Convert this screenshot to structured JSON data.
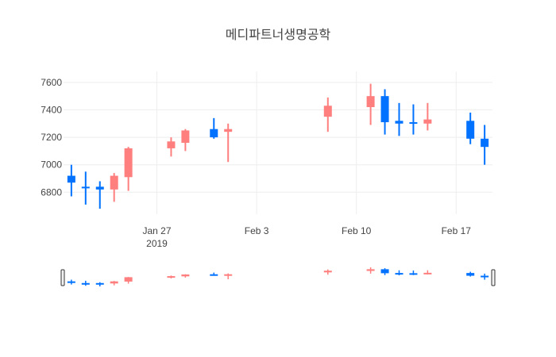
{
  "chart_data": {
    "type": "candlestick",
    "title": "메디파트너생명공학",
    "x_date_start": "2019-01-21",
    "x_date_end": "2019-02-19",
    "xlim": [
      "2019-01-21",
      "2019-02-19"
    ],
    "ylim": [
      6640,
      7680
    ],
    "y_ticks": [
      6800,
      7000,
      7200,
      7400,
      7600
    ],
    "y_tick_labels": [
      "6800",
      "7000",
      "7200",
      "7400",
      "7600"
    ],
    "x_ticks": [
      {
        "date": "2019-01-27",
        "label": "Jan 27",
        "sublabel": "2019"
      },
      {
        "date": "2019-02-03",
        "label": "Feb 3",
        "sublabel": ""
      },
      {
        "date": "2019-02-10",
        "label": "Feb 10",
        "sublabel": ""
      },
      {
        "date": "2019-02-17",
        "label": "Feb 17",
        "sublabel": ""
      }
    ],
    "increasing_color": "#FF7F7F",
    "decreasing_color": "#0072FF",
    "grid": true,
    "rangeslider": true,
    "candles": [
      {
        "date": "2019-01-21",
        "open": 6920,
        "high": 7000,
        "low": 6770,
        "close": 6870
      },
      {
        "date": "2019-01-22",
        "open": 6840,
        "high": 6950,
        "low": 6710,
        "close": 6830
      },
      {
        "date": "2019-01-23",
        "open": 6840,
        "high": 6880,
        "low": 6680,
        "close": 6820
      },
      {
        "date": "2019-01-24",
        "open": 6820,
        "high": 6940,
        "low": 6730,
        "close": 6920
      },
      {
        "date": "2019-01-25",
        "open": 6910,
        "high": 7130,
        "low": 6810,
        "close": 7120
      },
      {
        "date": "2019-01-28",
        "open": 7120,
        "high": 7200,
        "low": 7060,
        "close": 7170
      },
      {
        "date": "2019-01-29",
        "open": 7160,
        "high": 7260,
        "low": 7100,
        "close": 7250
      },
      {
        "date": "2019-01-31",
        "open": 7260,
        "high": 7340,
        "low": 7190,
        "close": 7200
      },
      {
        "date": "2019-02-01",
        "open": 7240,
        "high": 7300,
        "low": 7020,
        "close": 7260
      },
      {
        "date": "2019-02-08",
        "open": 7350,
        "high": 7490,
        "low": 7240,
        "close": 7430
      },
      {
        "date": "2019-02-11",
        "open": 7420,
        "high": 7590,
        "low": 7290,
        "close": 7500
      },
      {
        "date": "2019-02-12",
        "open": 7500,
        "high": 7550,
        "low": 7220,
        "close": 7310
      },
      {
        "date": "2019-02-13",
        "open": 7320,
        "high": 7450,
        "low": 7210,
        "close": 7300
      },
      {
        "date": "2019-02-14",
        "open": 7310,
        "high": 7440,
        "low": 7220,
        "close": 7300
      },
      {
        "date": "2019-02-15",
        "open": 7300,
        "high": 7450,
        "low": 7250,
        "close": 7330
      },
      {
        "date": "2019-02-18",
        "open": 7320,
        "high": 7380,
        "low": 7150,
        "close": 7190
      },
      {
        "date": "2019-02-19",
        "open": 7190,
        "high": 7290,
        "low": 7000,
        "close": 7130
      }
    ]
  }
}
